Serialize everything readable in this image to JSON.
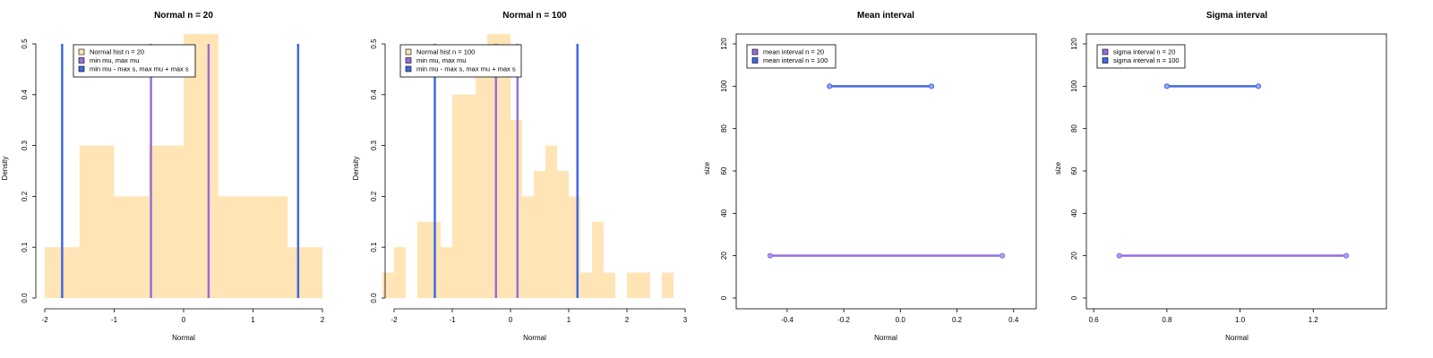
{
  "colors": {
    "hist_fill": "#FFE4B5",
    "min_max_mu": "#9370DB",
    "sigma_bounds": "#4169E1",
    "n20_interval": "#9370DB",
    "n100_interval": "#4169E1",
    "point_fill": "#9fa8ff"
  },
  "chart_data": [
    {
      "type": "bar",
      "subtype": "histogram",
      "title": "Normal  n =  20",
      "xlabel": "Normal",
      "ylabel": "Density",
      "xlim": [
        -2,
        2
      ],
      "ylim": [
        0,
        0.5
      ],
      "x_ticks": [
        -2,
        -1,
        0,
        1,
        2
      ],
      "y_ticks": [
        0.0,
        0.1,
        0.2,
        0.3,
        0.4,
        0.5
      ],
      "bins": [
        {
          "from": -2.0,
          "to": -1.5,
          "density": 0.1
        },
        {
          "from": -1.5,
          "to": -1.0,
          "density": 0.3
        },
        {
          "from": -1.0,
          "to": -0.5,
          "density": 0.2
        },
        {
          "from": -0.5,
          "to": 0.0,
          "density": 0.3
        },
        {
          "from": 0.0,
          "to": 0.5,
          "density": 0.52
        },
        {
          "from": 0.5,
          "to": 1.5,
          "density": 0.2
        },
        {
          "from": 1.5,
          "to": 2.0,
          "density": 0.1
        }
      ],
      "vlines": [
        {
          "series": "min mu, max mu",
          "x": -0.47
        },
        {
          "series": "min mu, max mu",
          "x": 0.36
        },
        {
          "series": "min mu - max s, max mu + max s",
          "x": -1.75
        },
        {
          "series": "min mu - max s, max mu + max s",
          "x": 1.65
        }
      ],
      "legend": [
        "Normal  hist n =  20",
        "min mu, max mu",
        "min mu - max s, max mu + max s"
      ],
      "legend_position": "top"
    },
    {
      "type": "bar",
      "subtype": "histogram",
      "title": "Normal  n =  100",
      "xlabel": "Normal",
      "ylabel": "Density",
      "xlim": [
        -2,
        3
      ],
      "ylim": [
        0,
        0.5
      ],
      "x_ticks": [
        -2,
        -1,
        0,
        1,
        2,
        3
      ],
      "y_ticks": [
        0.0,
        0.1,
        0.2,
        0.3,
        0.4,
        0.5
      ],
      "bins": [
        {
          "from": -2.2,
          "to": -2.0,
          "density": 0.05
        },
        {
          "from": -2.0,
          "to": -1.8,
          "density": 0.1
        },
        {
          "from": -1.6,
          "to": -1.4,
          "density": 0.15
        },
        {
          "from": -1.4,
          "to": -1.2,
          "density": 0.15
        },
        {
          "from": -1.2,
          "to": -1.0,
          "density": 0.1
        },
        {
          "from": -1.0,
          "to": -0.6,
          "density": 0.4
        },
        {
          "from": -0.6,
          "to": -0.4,
          "density": 0.45
        },
        {
          "from": -0.4,
          "to": 0.0,
          "density": 0.52
        },
        {
          "from": 0.0,
          "to": 0.2,
          "density": 0.35
        },
        {
          "from": 0.2,
          "to": 0.4,
          "density": 0.2
        },
        {
          "from": 0.4,
          "to": 0.6,
          "density": 0.25
        },
        {
          "from": 0.6,
          "to": 0.8,
          "density": 0.3
        },
        {
          "from": 0.8,
          "to": 1.0,
          "density": 0.25
        },
        {
          "from": 1.0,
          "to": 1.2,
          "density": 0.2
        },
        {
          "from": 1.2,
          "to": 1.4,
          "density": 0.05
        },
        {
          "from": 1.4,
          "to": 1.6,
          "density": 0.15
        },
        {
          "from": 1.6,
          "to": 1.8,
          "density": 0.05
        },
        {
          "from": 2.0,
          "to": 2.4,
          "density": 0.05
        },
        {
          "from": 2.6,
          "to": 2.8,
          "density": 0.05
        }
      ],
      "vlines": [
        {
          "series": "min mu, max mu",
          "x": -0.25
        },
        {
          "series": "min mu, max mu",
          "x": 0.12
        },
        {
          "series": "min mu - max s, max mu + max s",
          "x": -1.3
        },
        {
          "series": "min mu - max s, max mu + max s",
          "x": 1.15
        }
      ],
      "legend": [
        "Normal  hist n =  100",
        "min mu, max mu",
        "min mu - max s, max mu + max s"
      ],
      "legend_position": "top-left"
    },
    {
      "type": "line",
      "subtype": "interval",
      "title": "Mean interval",
      "xlabel": "Normal",
      "ylabel": "size",
      "xlim": [
        -0.58,
        0.48
      ],
      "ylim": [
        0,
        125
      ],
      "x_ticks": [
        -0.4,
        -0.2,
        0.0,
        0.2,
        0.4
      ],
      "y_ticks": [
        0,
        20,
        40,
        60,
        80,
        100,
        120
      ],
      "series": [
        {
          "name": "mean interval n =  20",
          "y": 20,
          "x": [
            -0.46,
            0.36
          ]
        },
        {
          "name": "mean interval n =  100",
          "y": 100,
          "x": [
            -0.25,
            0.11
          ]
        }
      ],
      "legend_position": "top-left"
    },
    {
      "type": "line",
      "subtype": "interval",
      "title": "Sigma interval",
      "xlabel": "Normal",
      "ylabel": "size",
      "xlim": [
        0.58,
        1.4
      ],
      "ylim": [
        0,
        125
      ],
      "x_ticks": [
        0.6,
        0.8,
        1.0,
        1.2
      ],
      "y_ticks": [
        0,
        20,
        40,
        60,
        80,
        100,
        120
      ],
      "series": [
        {
          "name": "sigma interval n =  20",
          "y": 20,
          "x": [
            0.67,
            1.29
          ]
        },
        {
          "name": "sigma interval n =  100",
          "y": 100,
          "x": [
            0.8,
            1.05
          ]
        }
      ],
      "legend_position": "top-left"
    }
  ]
}
